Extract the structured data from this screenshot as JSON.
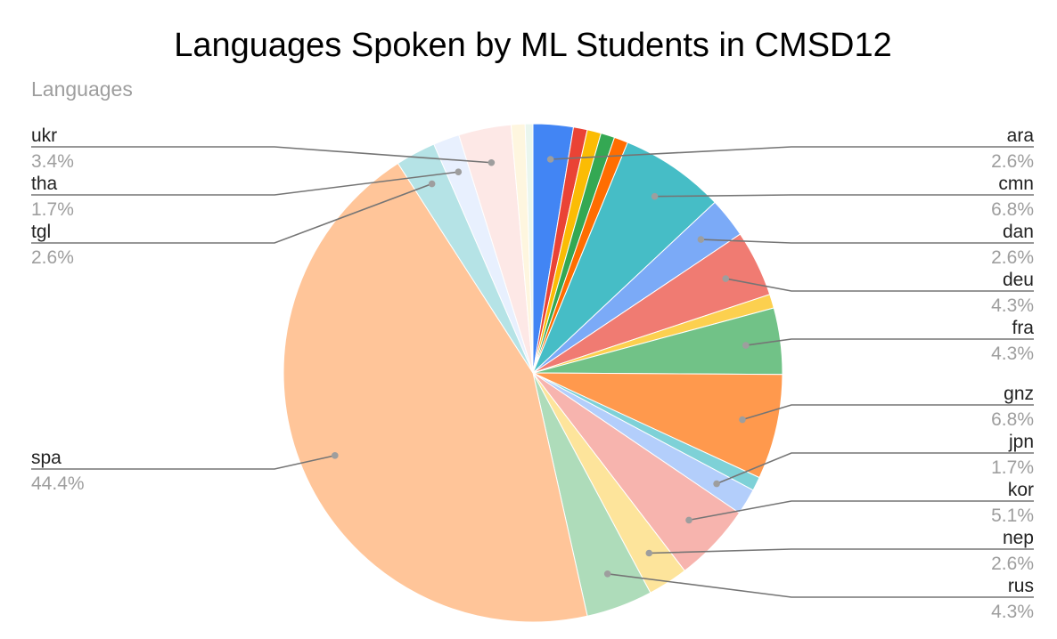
{
  "chart_data": {
    "type": "pie",
    "title": "Languages Spoken by ML Students in CMSD12",
    "legend_title": "Languages",
    "start_angle_deg": 0,
    "direction": "clockwise",
    "slices": [
      {
        "label": "ara",
        "percent": 2.6,
        "display": "2.6%",
        "color": "#4285f4",
        "labeled": true
      },
      {
        "label": "",
        "percent": 0.9,
        "display": "",
        "color": "#ea4335",
        "labeled": false
      },
      {
        "label": "",
        "percent": 0.9,
        "display": "",
        "color": "#fbbc04",
        "labeled": false
      },
      {
        "label": "",
        "percent": 0.9,
        "display": "",
        "color": "#34a853",
        "labeled": false
      },
      {
        "label": "",
        "percent": 0.9,
        "display": "",
        "color": "#ff6d01",
        "labeled": false
      },
      {
        "label": "cmn",
        "percent": 6.8,
        "display": "6.8%",
        "color": "#46bdc6",
        "labeled": true
      },
      {
        "label": "dan",
        "percent": 2.6,
        "display": "2.6%",
        "color": "#7baaf7",
        "labeled": true
      },
      {
        "label": "deu",
        "percent": 4.3,
        "display": "4.3%",
        "color": "#f07b72",
        "labeled": true
      },
      {
        "label": "",
        "percent": 0.9,
        "display": "",
        "color": "#fcd04f",
        "labeled": false
      },
      {
        "label": "fra",
        "percent": 4.3,
        "display": "4.3%",
        "color": "#71c287",
        "labeled": true
      },
      {
        "label": "gnz",
        "percent": 6.8,
        "display": "6.8%",
        "color": "#ff994d",
        "labeled": true
      },
      {
        "label": "",
        "percent": 0.9,
        "display": "",
        "color": "#7ed1d7",
        "labeled": false
      },
      {
        "label": "jpn",
        "percent": 1.7,
        "display": "1.7%",
        "color": "#b3cefb",
        "labeled": true
      },
      {
        "label": "kor",
        "percent": 5.1,
        "display": "5.1%",
        "color": "#f7b4ae",
        "labeled": true
      },
      {
        "label": "nep",
        "percent": 2.6,
        "display": "2.6%",
        "color": "#fde49b",
        "labeled": true
      },
      {
        "label": "rus",
        "percent": 4.3,
        "display": "4.3%",
        "color": "#aedcba",
        "labeled": true
      },
      {
        "label": "spa",
        "percent": 44.4,
        "display": "44.4%",
        "color": "#ffc599",
        "labeled": true
      },
      {
        "label": "tgl",
        "percent": 2.6,
        "display": "2.6%",
        "color": "#b5e3e6",
        "labeled": true
      },
      {
        "label": "tha",
        "percent": 1.7,
        "display": "1.7%",
        "color": "#e8f0fe",
        "labeled": true
      },
      {
        "label": "ukr",
        "percent": 3.4,
        "display": "3.4%",
        "color": "#fde8e6",
        "labeled": true
      },
      {
        "label": "",
        "percent": 0.9,
        "display": "",
        "color": "#fef6df",
        "labeled": false
      },
      {
        "label": "",
        "percent": 0.5,
        "display": "",
        "color": "#eaf6ee",
        "labeled": false
      }
    ]
  }
}
